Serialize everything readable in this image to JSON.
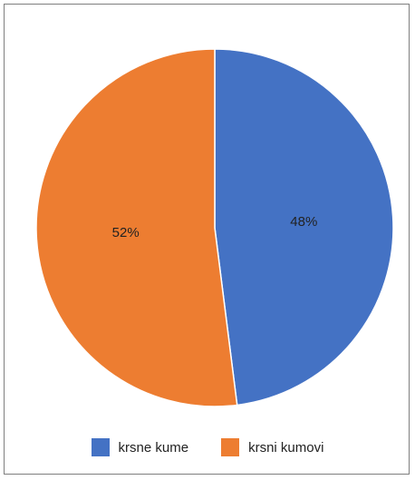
{
  "chart_data": {
    "type": "pie",
    "categories": [
      "krsne kume",
      "krsni kumovi"
    ],
    "values": [
      48,
      52
    ],
    "value_labels": [
      "48%",
      "52%"
    ],
    "colors": [
      "#4472c4",
      "#ed7d31"
    ],
    "start": "12 o'clock, clockwise",
    "legend_position": "bottom"
  }
}
